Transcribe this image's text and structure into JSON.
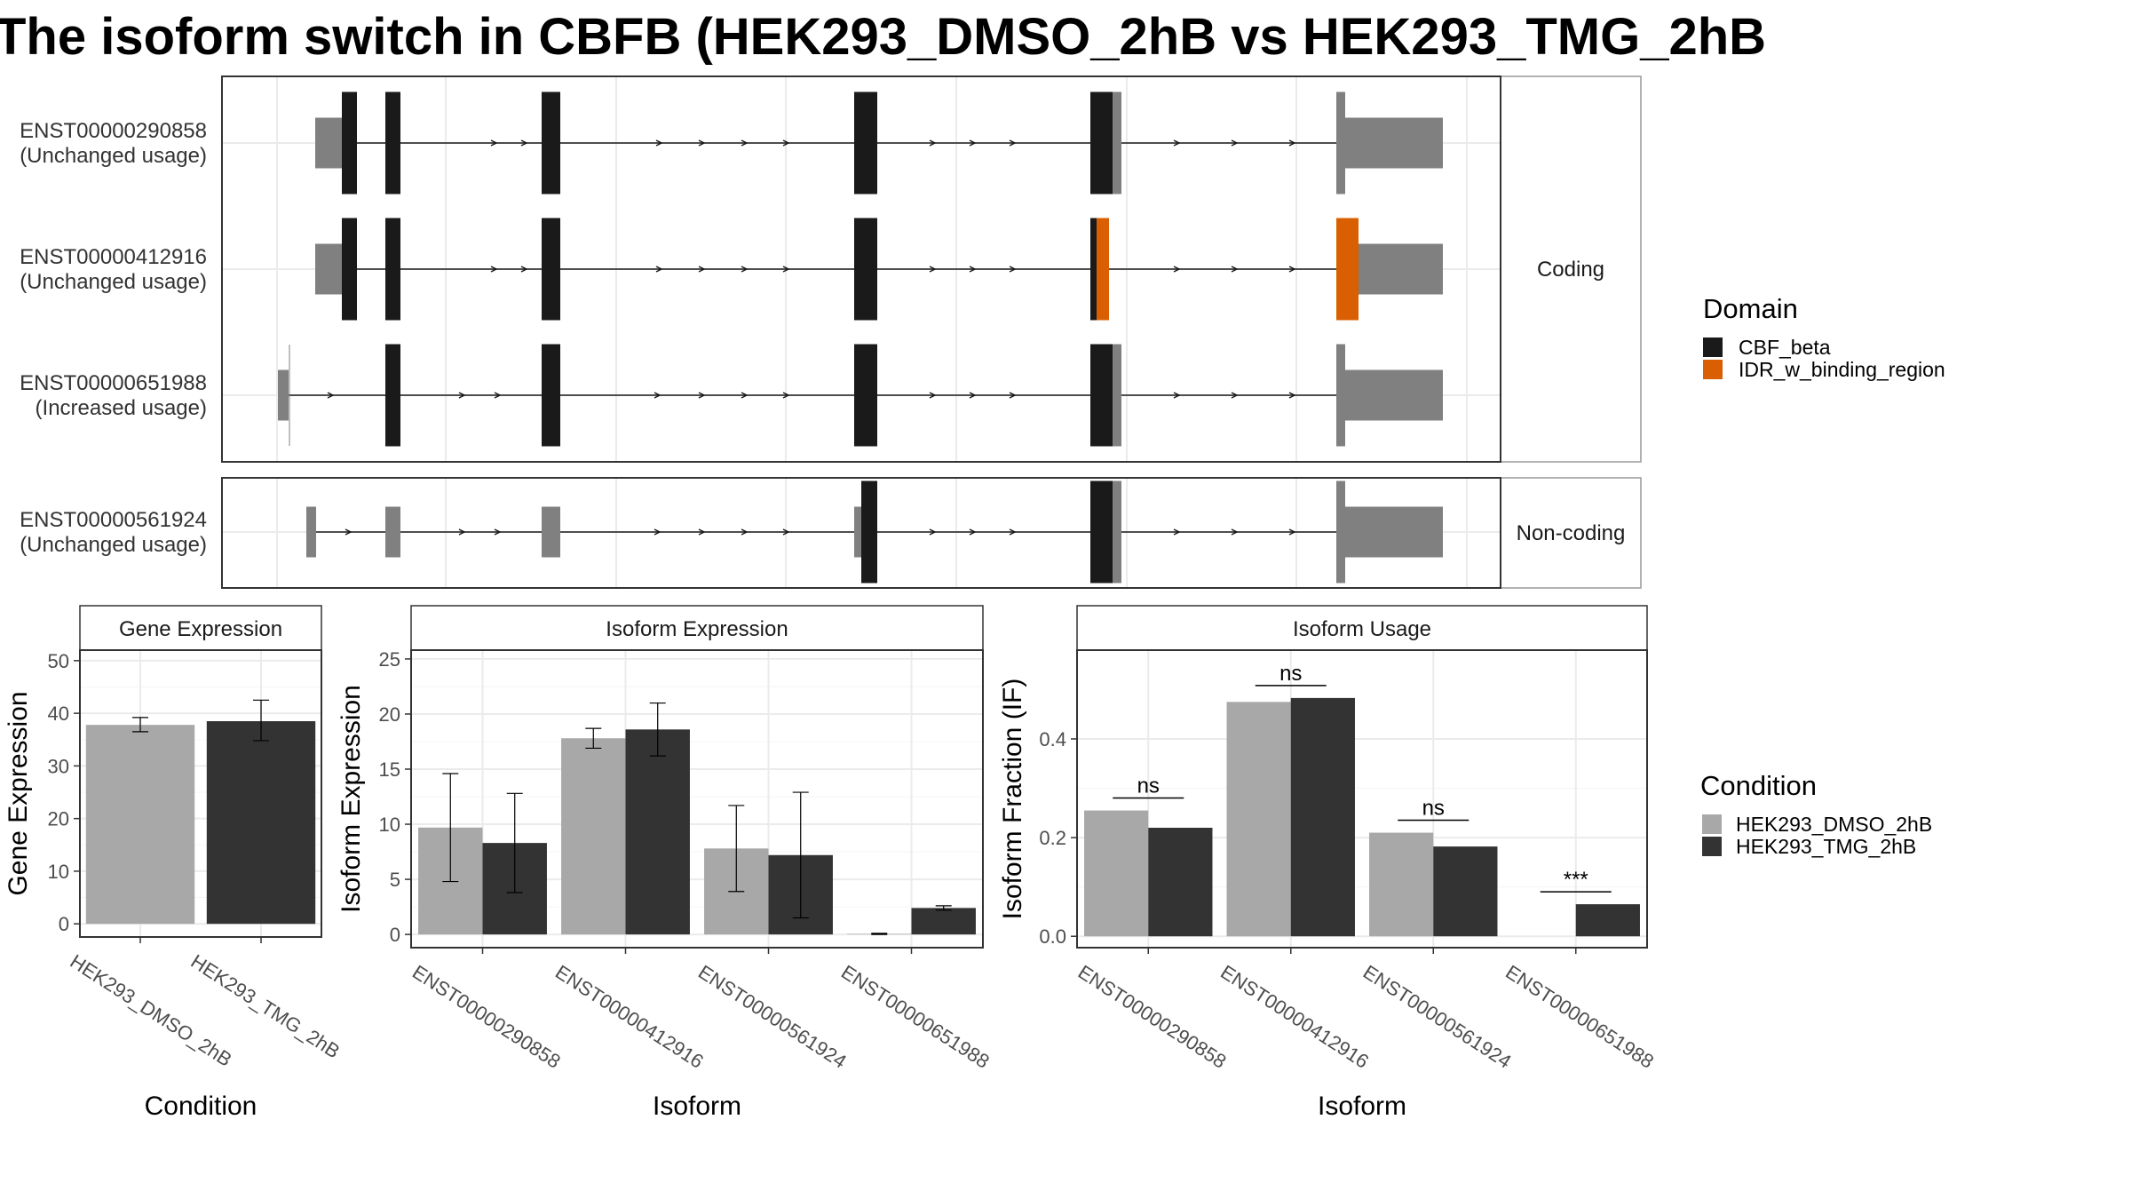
{
  "title": "The isoform switch in CBFB (HEK293_DMSO_2hB vs HEK293_TMG_2hB",
  "colors": {
    "cds": "#1a1a1a",
    "utr": "#808080",
    "idr": "#d95f02",
    "dmso": "#a8a8a8",
    "tmg": "#333333",
    "grid": "#ebebeb",
    "frame": "#333333"
  },
  "chart_data": [
    {
      "type": "gene-structure",
      "facets": [
        "Coding",
        "Non-coding"
      ],
      "legend": {
        "title": "Domain",
        "entries": [
          {
            "label": "CBF_beta",
            "color": "#1a1a1a"
          },
          {
            "label": "IDR_w_binding_region",
            "color": "#d95f02"
          }
        ]
      },
      "transcripts": [
        {
          "id": "ENST00000290858",
          "usage": "(Unchanged usage)",
          "facet": "Coding"
        },
        {
          "id": "ENST00000412916",
          "usage": "(Unchanged usage)",
          "facet": "Coding"
        },
        {
          "id": "ENST00000651988",
          "usage": "(Increased usage)",
          "facet": "Coding"
        },
        {
          "id": "ENST00000561924",
          "usage": "(Unchanged usage)",
          "facet": "Non-coding"
        }
      ]
    },
    {
      "type": "bar",
      "title": "Gene Expression",
      "xlabel": "Condition",
      "ylabel": "Gene Expression",
      "ylim": [
        -2.5,
        52
      ],
      "yticks": [
        0,
        10,
        20,
        30,
        40,
        50
      ],
      "categories": [
        "HEK293_DMSO_2hB",
        "HEK293_TMG_2hB"
      ],
      "values": [
        37.8,
        38.5
      ],
      "errors": [
        [
          36.5,
          39.2
        ],
        [
          34.8,
          42.5
        ]
      ]
    },
    {
      "type": "bar",
      "title": "Isoform Expression",
      "xlabel": "Isoform",
      "ylabel": "Isoform Expression",
      "ylim": [
        -1.2,
        25.8
      ],
      "yticks": [
        0,
        5,
        10,
        15,
        20,
        25
      ],
      "categories": [
        "ENST00000290858",
        "ENST00000412916",
        "ENST00000561924",
        "ENST00000651988"
      ],
      "series": [
        {
          "name": "HEK293_DMSO_2hB",
          "values": [
            9.7,
            17.8,
            7.8,
            0.05
          ],
          "errors": [
            [
              4.8,
              14.6
            ],
            [
              16.9,
              18.7
            ],
            [
              3.9,
              11.7
            ],
            [
              0,
              0.1
            ]
          ]
        },
        {
          "name": "HEK293_TMG_2hB",
          "values": [
            8.3,
            18.6,
            7.2,
            2.4
          ],
          "errors": [
            [
              3.8,
              12.8
            ],
            [
              16.2,
              21.0
            ],
            [
              1.5,
              12.9
            ],
            [
              2.2,
              2.6
            ]
          ]
        }
      ]
    },
    {
      "type": "bar",
      "title": "Isoform Usage",
      "xlabel": "Isoform",
      "ylabel": "Isoform Fraction (IF)",
      "ylim": [
        -0.023,
        0.58
      ],
      "yticks": [
        0.0,
        0.2,
        0.4
      ],
      "ytick_labels": [
        "0.0",
        "0.2",
        "0.4"
      ],
      "categories": [
        "ENST00000290858",
        "ENST00000412916",
        "ENST00000561924",
        "ENST00000651988"
      ],
      "series": [
        {
          "name": "HEK293_DMSO_2hB",
          "values": [
            0.255,
            0.475,
            0.21,
            0.0
          ]
        },
        {
          "name": "HEK293_TMG_2hB",
          "values": [
            0.22,
            0.483,
            0.182,
            0.065
          ]
        }
      ],
      "significance": [
        "ns",
        "ns",
        "ns",
        "***"
      ]
    }
  ],
  "condition_legend": {
    "title": "Condition",
    "entries": [
      {
        "label": "HEK293_DMSO_2hB",
        "color": "#a8a8a8"
      },
      {
        "label": "HEK293_TMG_2hB",
        "color": "#333333"
      }
    ]
  }
}
